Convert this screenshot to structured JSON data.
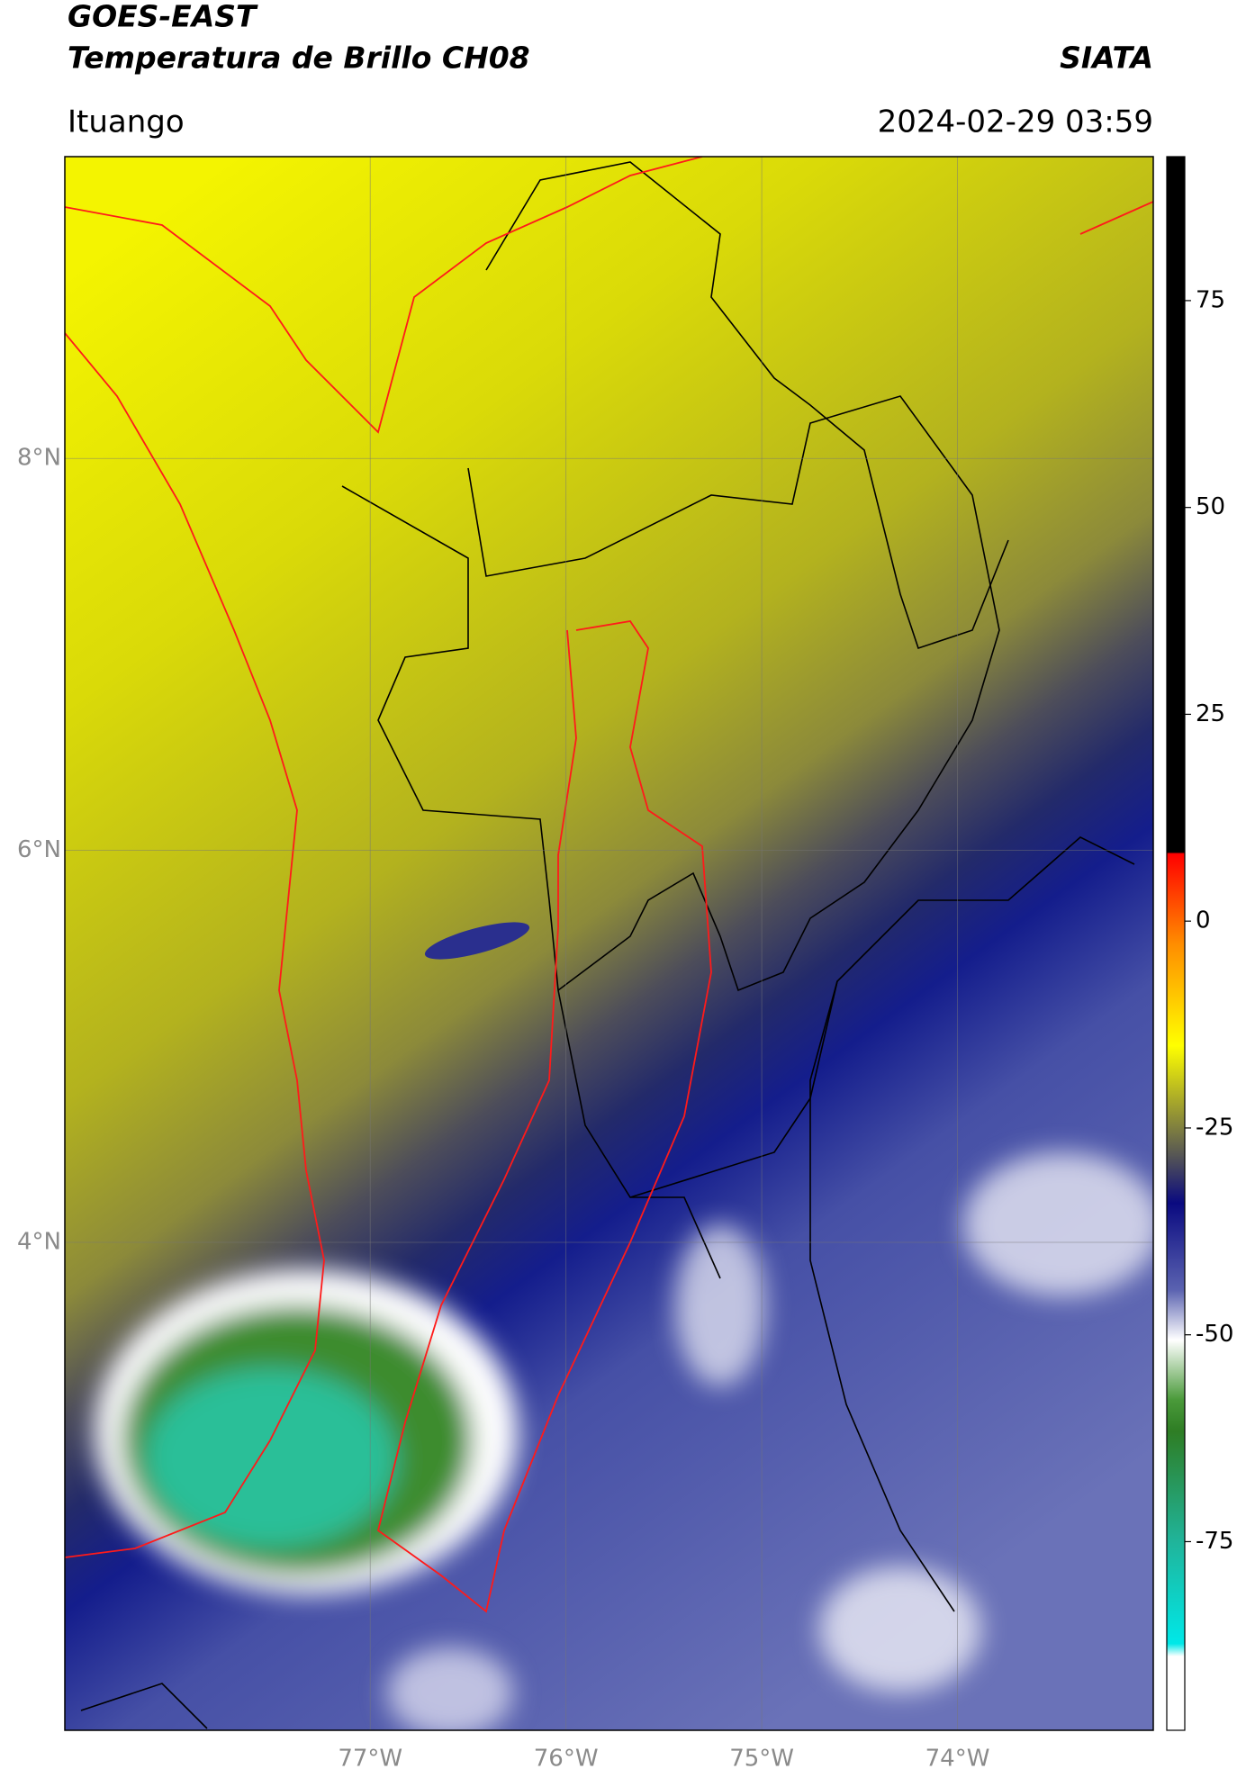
{
  "header": {
    "title_line1": "GOES-EAST",
    "title_line2": "Temperatura de Brillo CH08",
    "agency": "SIATA",
    "region": "Ituango",
    "timestamp": "2024-02-29 03:59"
  },
  "map": {
    "xlim": [
      -78.56,
      -73.0
    ],
    "ylim": [
      1.51,
      9.54
    ],
    "lon_ticks": [
      {
        "value": -77,
        "label": "77°W"
      },
      {
        "value": -76,
        "label": "76°W"
      },
      {
        "value": -75,
        "label": "75°W"
      },
      {
        "value": -74,
        "label": "74°W"
      }
    ],
    "lat_ticks": [
      {
        "value": 8,
        "label": "8°N"
      },
      {
        "value": 6,
        "label": "6°N"
      },
      {
        "value": 4,
        "label": "4°N"
      }
    ],
    "grid": true
  },
  "colorbar": {
    "lim": [
      -97.8,
      92.4
    ],
    "ticks": [
      75,
      50,
      25,
      0,
      -25,
      -50,
      -75
    ]
  }
}
